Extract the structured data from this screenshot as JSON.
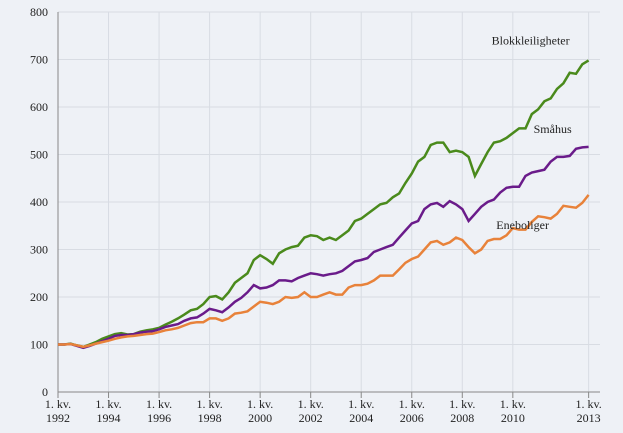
{
  "chart_data": {
    "type": "line",
    "x": [
      1992,
      1992.25,
      1992.5,
      1992.75,
      1993,
      1993.25,
      1993.5,
      1993.75,
      1994,
      1994.25,
      1994.5,
      1994.75,
      1995,
      1995.25,
      1995.5,
      1995.75,
      1996,
      1996.25,
      1996.5,
      1996.75,
      1997,
      1997.25,
      1997.5,
      1997.75,
      1998,
      1998.25,
      1998.5,
      1998.75,
      1999,
      1999.25,
      1999.5,
      1999.75,
      2000,
      2000.25,
      2000.5,
      2000.75,
      2001,
      2001.25,
      2001.5,
      2001.75,
      2002,
      2002.25,
      2002.5,
      2002.75,
      2003,
      2003.25,
      2003.5,
      2003.75,
      2004,
      2004.25,
      2004.5,
      2004.75,
      2005,
      2005.25,
      2005.5,
      2005.75,
      2006,
      2006.25,
      2006.5,
      2006.75,
      2007,
      2007.25,
      2007.5,
      2007.75,
      2008,
      2008.25,
      2008.5,
      2008.75,
      2009,
      2009.25,
      2009.5,
      2009.75,
      2010,
      2010.25,
      2010.5,
      2010.75,
      2011,
      2011.25,
      2011.5,
      2011.75,
      2012,
      2012.25,
      2012.5,
      2012.75,
      2013
    ],
    "series": [
      {
        "name": "Blokkleiligheter",
        "color": "#4a8a1c",
        "values": [
          100,
          100,
          102,
          98,
          95,
          100,
          105,
          112,
          117,
          122,
          124,
          121,
          122,
          127,
          130,
          132,
          135,
          142,
          148,
          155,
          163,
          172,
          175,
          185,
          200,
          202,
          195,
          210,
          230,
          240,
          250,
          278,
          288,
          280,
          270,
          292,
          300,
          305,
          308,
          325,
          330,
          328,
          320,
          325,
          320,
          330,
          340,
          360,
          365,
          375,
          385,
          395,
          398,
          410,
          418,
          440,
          460,
          485,
          495,
          520,
          525,
          525,
          505,
          508,
          505,
          495,
          455,
          480,
          505,
          525,
          528,
          535,
          545,
          555,
          555,
          585,
          595,
          612,
          618,
          638,
          650,
          672,
          670,
          690,
          698
        ]
      },
      {
        "name": "Småhus",
        "color": "#6a1b8a",
        "values": [
          100,
          100,
          101,
          97,
          93,
          97,
          102,
          107,
          112,
          118,
          120,
          120,
          122,
          125,
          127,
          128,
          132,
          137,
          140,
          143,
          150,
          155,
          157,
          165,
          175,
          172,
          168,
          178,
          190,
          198,
          210,
          225,
          218,
          220,
          225,
          235,
          235,
          233,
          240,
          245,
          250,
          248,
          245,
          248,
          250,
          255,
          265,
          275,
          278,
          282,
          295,
          300,
          305,
          310,
          325,
          340,
          355,
          360,
          385,
          395,
          398,
          390,
          402,
          395,
          385,
          360,
          375,
          390,
          400,
          405,
          420,
          430,
          432,
          432,
          455,
          462,
          465,
          468,
          485,
          495,
          495,
          497,
          512,
          515,
          516
        ]
      },
      {
        "name": "Eneboliger",
        "color": "#e8823a",
        "values": [
          100,
          100,
          101,
          98,
          95,
          98,
          102,
          105,
          108,
          112,
          115,
          117,
          118,
          120,
          122,
          123,
          126,
          130,
          132,
          135,
          140,
          145,
          147,
          147,
          155,
          155,
          150,
          155,
          165,
          167,
          170,
          180,
          190,
          188,
          185,
          190,
          200,
          198,
          200,
          210,
          200,
          200,
          205,
          210,
          205,
          205,
          220,
          225,
          225,
          228,
          235,
          245,
          245,
          245,
          258,
          272,
          280,
          285,
          300,
          315,
          318,
          310,
          315,
          325,
          320,
          305,
          292,
          300,
          318,
          322,
          322,
          330,
          345,
          342,
          342,
          358,
          370,
          368,
          365,
          375,
          392,
          390,
          388,
          398,
          415
        ]
      }
    ],
    "xlim": [
      1992,
      2013.45
    ],
    "xticks": [
      {
        "value": 1992,
        "label": "1. kv.\n1992"
      },
      {
        "value": 1994,
        "label": "1. kv.\n1994"
      },
      {
        "value": 1996,
        "label": "1. kv.\n1996"
      },
      {
        "value": 1998,
        "label": "1. kv.\n1998"
      },
      {
        "value": 2000,
        "label": "1. kv.\n2000"
      },
      {
        "value": 2002,
        "label": "1. kv.\n2002"
      },
      {
        "value": 2004,
        "label": "1. kv.\n2004"
      },
      {
        "value": 2006,
        "label": "1. kv.\n2006"
      },
      {
        "value": 2008,
        "label": "1. kv.\n2008"
      },
      {
        "value": 2010,
        "label": "1. kv.\n2010"
      },
      {
        "value": 2013,
        "label": "1. kv.\n2013"
      }
    ],
    "ylim": [
      0,
      800
    ],
    "yticks": [
      0,
      100,
      200,
      300,
      400,
      500,
      600,
      700,
      800
    ],
    "grid": true
  }
}
